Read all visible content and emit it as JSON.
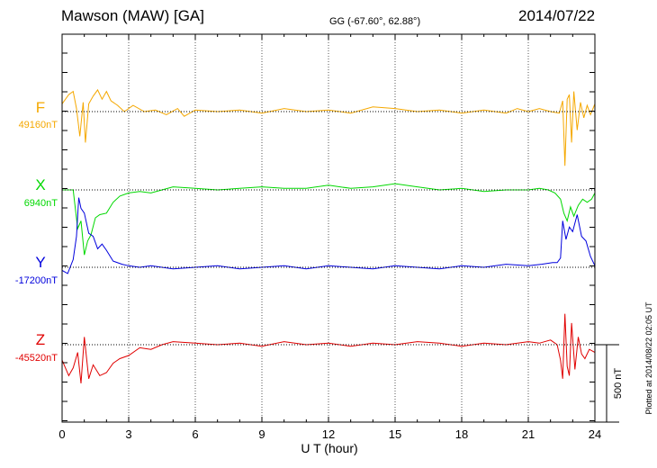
{
  "header": {
    "station": "Mawson (MAW)  [GA]",
    "coords": "GG (-67.60°,  62.88°)",
    "date": "2014/07/22"
  },
  "footer": {
    "plotted": "Plotted at 2014/08/22 02:05 UT"
  },
  "chart_data": {
    "type": "line",
    "title": "",
    "xlabel": "U T (hour)",
    "xlim": [
      0,
      24
    ],
    "x_ticks": [
      0,
      3,
      6,
      9,
      12,
      15,
      18,
      21,
      24
    ],
    "grid": "dotted vertical lines every 3 hours",
    "scale_bar": {
      "label": "500 nT",
      "value_nT": 500
    },
    "series": [
      {
        "name": "F",
        "baseline_label": "49160nT",
        "baseline_nT": 49160,
        "color": "#f5a800",
        "x": [
          0,
          0.3,
          0.5,
          0.65,
          0.8,
          0.95,
          1.05,
          1.2,
          1.4,
          1.6,
          1.8,
          2.0,
          2.2,
          2.5,
          2.8,
          3.2,
          3.7,
          4.2,
          4.7,
          5.2,
          5.5,
          6.0,
          7,
          8,
          9,
          10,
          11,
          12,
          13,
          14,
          15,
          16,
          17,
          18,
          19,
          20,
          20.5,
          21,
          21.5,
          22,
          22.4,
          22.55,
          22.65,
          22.75,
          22.85,
          22.95,
          23.05,
          23.2,
          23.35,
          23.5,
          23.65,
          23.8,
          24
        ],
        "y": [
          50,
          110,
          130,
          20,
          -160,
          60,
          -200,
          50,
          100,
          140,
          80,
          130,
          70,
          40,
          0,
          40,
          0,
          10,
          -20,
          20,
          -30,
          10,
          0,
          10,
          -10,
          20,
          0,
          10,
          -10,
          30,
          20,
          0,
          10,
          -10,
          10,
          -10,
          20,
          0,
          20,
          0,
          -10,
          70,
          -350,
          80,
          110,
          -200,
          130,
          -120,
          60,
          -40,
          40,
          -20,
          50
        ]
      },
      {
        "name": "X",
        "baseline_label": "6940nT",
        "baseline_nT": 6940,
        "color": "#00d800",
        "x": [
          0,
          0.3,
          0.5,
          0.7,
          0.85,
          1.0,
          1.15,
          1.3,
          1.5,
          1.7,
          2.0,
          2.3,
          2.6,
          3.0,
          3.5,
          4.0,
          4.5,
          5.0,
          6,
          7,
          8,
          9,
          10,
          11,
          12,
          13,
          14,
          15,
          16,
          17,
          18,
          19,
          20,
          21,
          21.5,
          21.9,
          22.2,
          22.45,
          22.6,
          22.75,
          22.9,
          23.05,
          23.25,
          23.45,
          23.65,
          23.85,
          24
        ],
        "y": [
          0,
          0,
          0,
          -250,
          -200,
          -420,
          -330,
          -290,
          -180,
          -160,
          -150,
          -80,
          -40,
          -20,
          -10,
          -20,
          0,
          20,
          10,
          0,
          10,
          20,
          10,
          10,
          30,
          10,
          20,
          40,
          20,
          0,
          10,
          -10,
          0,
          0,
          10,
          0,
          -20,
          -60,
          -150,
          -200,
          -110,
          -170,
          -100,
          -60,
          -80,
          -60,
          -20
        ]
      },
      {
        "name": "Y",
        "baseline_label": "-17200nT",
        "baseline_nT": -17200,
        "color": "#0000dd",
        "x": [
          0,
          0.25,
          0.5,
          0.65,
          0.75,
          0.85,
          1.0,
          1.2,
          1.4,
          1.6,
          1.8,
          2.0,
          2.3,
          2.7,
          3.0,
          3.5,
          4,
          5,
          6,
          7,
          8,
          9,
          10,
          11,
          12,
          13,
          14,
          15,
          16,
          17,
          18,
          19,
          20,
          21,
          21.6,
          22.1,
          22.3,
          22.45,
          22.55,
          22.7,
          22.85,
          23.0,
          23.2,
          23.4,
          23.6,
          23.8,
          24
        ],
        "y": [
          -20,
          -40,
          50,
          200,
          450,
          380,
          350,
          220,
          200,
          120,
          150,
          110,
          40,
          20,
          10,
          0,
          10,
          -10,
          0,
          10,
          -10,
          0,
          10,
          -10,
          10,
          0,
          -10,
          10,
          0,
          -10,
          10,
          0,
          20,
          10,
          20,
          30,
          30,
          60,
          300,
          180,
          260,
          230,
          340,
          200,
          170,
          70,
          10
        ]
      },
      {
        "name": "Z",
        "baseline_label": "-45520nT",
        "baseline_nT": -45520,
        "color": "#e00000",
        "x": [
          0,
          0.3,
          0.5,
          0.7,
          0.85,
          1.0,
          1.2,
          1.4,
          1.7,
          2.0,
          2.3,
          2.6,
          3.0,
          3.5,
          4.0,
          4.5,
          5,
          6,
          7,
          8,
          9,
          10,
          11,
          12,
          13,
          14,
          15,
          16,
          17,
          18,
          19,
          20,
          21,
          21.5,
          22,
          22.3,
          22.45,
          22.55,
          22.65,
          22.75,
          22.85,
          22.95,
          23.1,
          23.25,
          23.4,
          23.55,
          23.75,
          24
        ],
        "y": [
          -100,
          -200,
          -150,
          -50,
          -250,
          50,
          -220,
          -130,
          -200,
          -180,
          -120,
          -90,
          -70,
          -20,
          -30,
          0,
          20,
          10,
          0,
          10,
          -10,
          20,
          0,
          10,
          -10,
          10,
          0,
          20,
          10,
          -10,
          10,
          0,
          20,
          10,
          30,
          0,
          -100,
          -220,
          200,
          -140,
          -200,
          140,
          -160,
          50,
          -60,
          -90,
          -30,
          -50
        ]
      }
    ]
  }
}
